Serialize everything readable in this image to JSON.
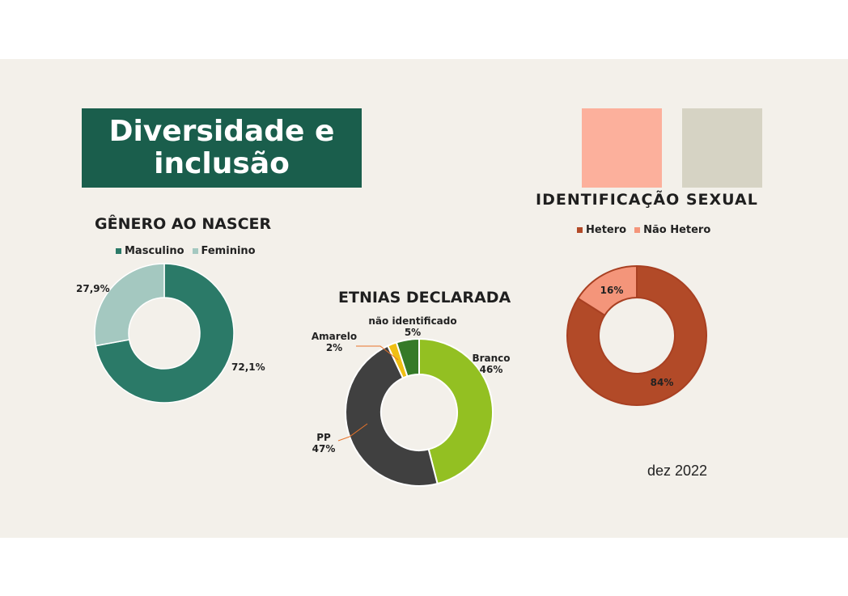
{
  "title": "Diversidade e inclusão",
  "date": "dez 2022",
  "colors": {
    "title_bg": "#1a5e4c",
    "swatch_1": "#fcb09c",
    "swatch_2": "#d6d3c4"
  },
  "chart_data": [
    {
      "type": "pie",
      "title": "GÊNERO AO NASCER",
      "legend": "top",
      "series": [
        {
          "name": "Masculino",
          "value": 72.1,
          "label": "72,1%",
          "color": "#2b7a68"
        },
        {
          "name": "Feminino",
          "value": 27.9,
          "label": "27,9%",
          "color": "#a4c8c0"
        }
      ]
    },
    {
      "type": "pie",
      "title": "ETNIAS DECLARADA",
      "legend": "none",
      "series": [
        {
          "name": "Branco",
          "value": 46,
          "label": "46%",
          "color": "#93c022"
        },
        {
          "name": "PP",
          "value": 47,
          "label": "47%",
          "color": "#404040"
        },
        {
          "name": "Amarelo",
          "value": 2,
          "label": "2%",
          "color": "#f0bf13"
        },
        {
          "name": "não identificado",
          "value": 5,
          "label": "5%",
          "color": "#357a28"
        }
      ]
    },
    {
      "type": "pie",
      "title": "IDENTIFICAÇÃO SEXUAL",
      "legend": "top",
      "series": [
        {
          "name": "Hetero",
          "value": 84,
          "label": "84%",
          "color": "#b24a28"
        },
        {
          "name": "Não Hetero",
          "value": 16,
          "label": "16%",
          "color": "#f4957a"
        }
      ]
    }
  ]
}
